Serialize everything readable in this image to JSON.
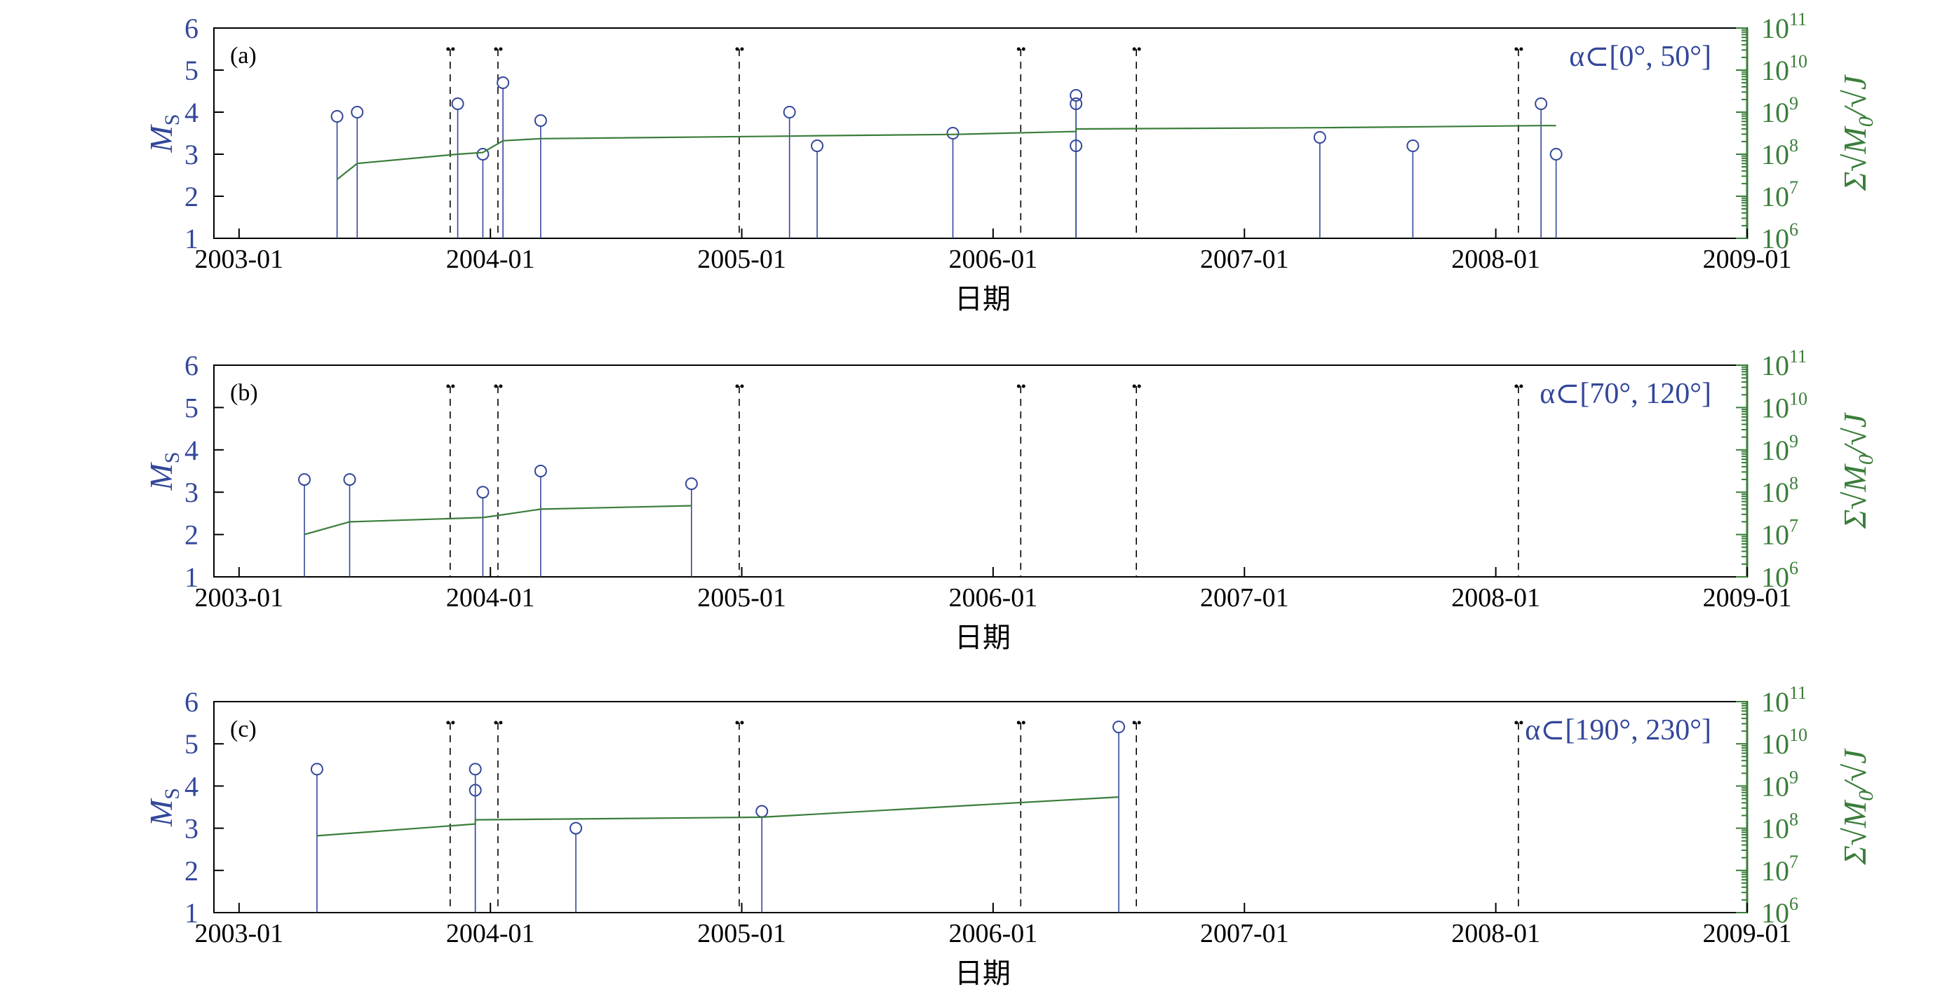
{
  "colors": {
    "ms": "#33479a",
    "moment": "#3a7d3a",
    "axis": "#000000",
    "marker_lines": "#000000"
  },
  "chart_data": [
    {
      "type": "stem+line",
      "panel_label": "(a)",
      "range_label": "α⊂[0°, 50°]",
      "xlabel": "日期",
      "ylabel_left": "MS",
      "ylabel_right": "Σ√M0/√J",
      "xlim": [
        "2003-01",
        "2009-01"
      ],
      "xticks": [
        "2003-01",
        "2004-01",
        "2005-01",
        "2006-01",
        "2007-01",
        "2008-01",
        "2009-01"
      ],
      "ylim_left": [
        1,
        6
      ],
      "yticks_left": [
        1,
        2,
        3,
        4,
        5,
        6
      ],
      "ylim_right_log10": [
        6,
        11
      ],
      "yticks_right": [
        "10^6",
        "10^7",
        "10^8",
        "10^9",
        "10^10",
        "10^11"
      ],
      "vertical_markers": [
        2003.84,
        2004.03,
        2004.99,
        2006.11,
        2006.57,
        2008.09
      ],
      "events": [
        {
          "date": 2003.39,
          "ms": 3.9
        },
        {
          "date": 2003.47,
          "ms": 4.0
        },
        {
          "date": 2003.87,
          "ms": 4.2
        },
        {
          "date": 2003.97,
          "ms": 3.0
        },
        {
          "date": 2004.05,
          "ms": 4.7
        },
        {
          "date": 2004.2,
          "ms": 3.8
        },
        {
          "date": 2005.19,
          "ms": 4.0
        },
        {
          "date": 2005.3,
          "ms": 3.2
        },
        {
          "date": 2005.84,
          "ms": 3.5
        },
        {
          "date": 2006.33,
          "ms": 4.4
        },
        {
          "date": 2006.33,
          "ms": 4.2
        },
        {
          "date": 2006.33,
          "ms": 3.2
        },
        {
          "date": 2007.3,
          "ms": 3.4
        },
        {
          "date": 2007.67,
          "ms": 3.2
        },
        {
          "date": 2008.18,
          "ms": 4.2
        },
        {
          "date": 2008.24,
          "ms": 3.0
        }
      ],
      "cumulative": [
        {
          "date": 2003.39,
          "log10": 7.4
        },
        {
          "date": 2003.47,
          "log10": 7.78
        },
        {
          "date": 2003.87,
          "log10": 8.0
        },
        {
          "date": 2003.97,
          "log10": 8.04
        },
        {
          "date": 2004.05,
          "log10": 8.32
        },
        {
          "date": 2004.2,
          "log10": 8.37
        },
        {
          "date": 2005.19,
          "log10": 8.43
        },
        {
          "date": 2005.3,
          "log10": 8.44
        },
        {
          "date": 2005.84,
          "log10": 8.47
        },
        {
          "date": 2006.33,
          "log10": 8.54
        },
        {
          "date": 2006.33,
          "log10": 8.6
        },
        {
          "date": 2007.3,
          "log10": 8.63
        },
        {
          "date": 2007.67,
          "log10": 8.65
        },
        {
          "date": 2008.18,
          "log10": 8.68
        },
        {
          "date": 2008.24,
          "log10": 8.68
        }
      ]
    },
    {
      "type": "stem+line",
      "panel_label": "(b)",
      "range_label": "α⊂[70°, 120°]",
      "xlabel": "日期",
      "ylabel_left": "MS",
      "ylabel_right": "Σ√M0/√J",
      "xlim": [
        "2003-01",
        "2009-01"
      ],
      "xticks": [
        "2003-01",
        "2004-01",
        "2005-01",
        "2006-01",
        "2007-01",
        "2008-01",
        "2009-01"
      ],
      "ylim_left": [
        1,
        6
      ],
      "yticks_left": [
        1,
        2,
        3,
        4,
        5,
        6
      ],
      "ylim_right_log10": [
        6,
        11
      ],
      "yticks_right": [
        "10^6",
        "10^7",
        "10^8",
        "10^9",
        "10^10",
        "10^11"
      ],
      "vertical_markers": [
        2003.84,
        2004.03,
        2004.99,
        2006.11,
        2006.57,
        2008.09
      ],
      "events": [
        {
          "date": 2003.26,
          "ms": 3.3
        },
        {
          "date": 2003.44,
          "ms": 3.3
        },
        {
          "date": 2003.97,
          "ms": 3.0
        },
        {
          "date": 2004.2,
          "ms": 3.5
        },
        {
          "date": 2004.8,
          "ms": 3.2
        }
      ],
      "cumulative": [
        {
          "date": 2003.26,
          "log10": 7.0
        },
        {
          "date": 2003.44,
          "log10": 7.3
        },
        {
          "date": 2003.97,
          "log10": 7.4
        },
        {
          "date": 2004.03,
          "log10": 7.45
        },
        {
          "date": 2004.2,
          "log10": 7.6
        },
        {
          "date": 2004.8,
          "log10": 7.68
        }
      ]
    },
    {
      "type": "stem+line",
      "panel_label": "(c)",
      "range_label": "α⊂[190°, 230°]",
      "xlabel": "日期",
      "ylabel_left": "MS",
      "ylabel_right": "Σ√M0/√J",
      "xlim": [
        "2003-01",
        "2009-01"
      ],
      "xticks": [
        "2003-01",
        "2004-01",
        "2005-01",
        "2006-01",
        "2007-01",
        "2008-01",
        "2009-01"
      ],
      "ylim_left": [
        1,
        6
      ],
      "yticks_left": [
        1,
        2,
        3,
        4,
        5,
        6
      ],
      "ylim_right_log10": [
        6,
        11
      ],
      "yticks_right": [
        "10^6",
        "10^7",
        "10^8",
        "10^9",
        "10^10",
        "10^11"
      ],
      "vertical_markers": [
        2003.84,
        2004.03,
        2004.99,
        2006.11,
        2006.57,
        2008.09
      ],
      "events": [
        {
          "date": 2003.31,
          "ms": 4.4
        },
        {
          "date": 2003.94,
          "ms": 4.4
        },
        {
          "date": 2003.94,
          "ms": 3.9
        },
        {
          "date": 2004.34,
          "ms": 3.0
        },
        {
          "date": 2005.08,
          "ms": 3.4
        },
        {
          "date": 2006.5,
          "ms": 5.4
        }
      ],
      "cumulative": [
        {
          "date": 2003.31,
          "log10": 7.82
        },
        {
          "date": 2003.94,
          "log10": 8.1
        },
        {
          "date": 2003.94,
          "log10": 8.2
        },
        {
          "date": 2004.34,
          "log10": 8.22
        },
        {
          "date": 2005.08,
          "log10": 8.26
        },
        {
          "date": 2006.5,
          "log10": 8.74
        }
      ]
    }
  ]
}
